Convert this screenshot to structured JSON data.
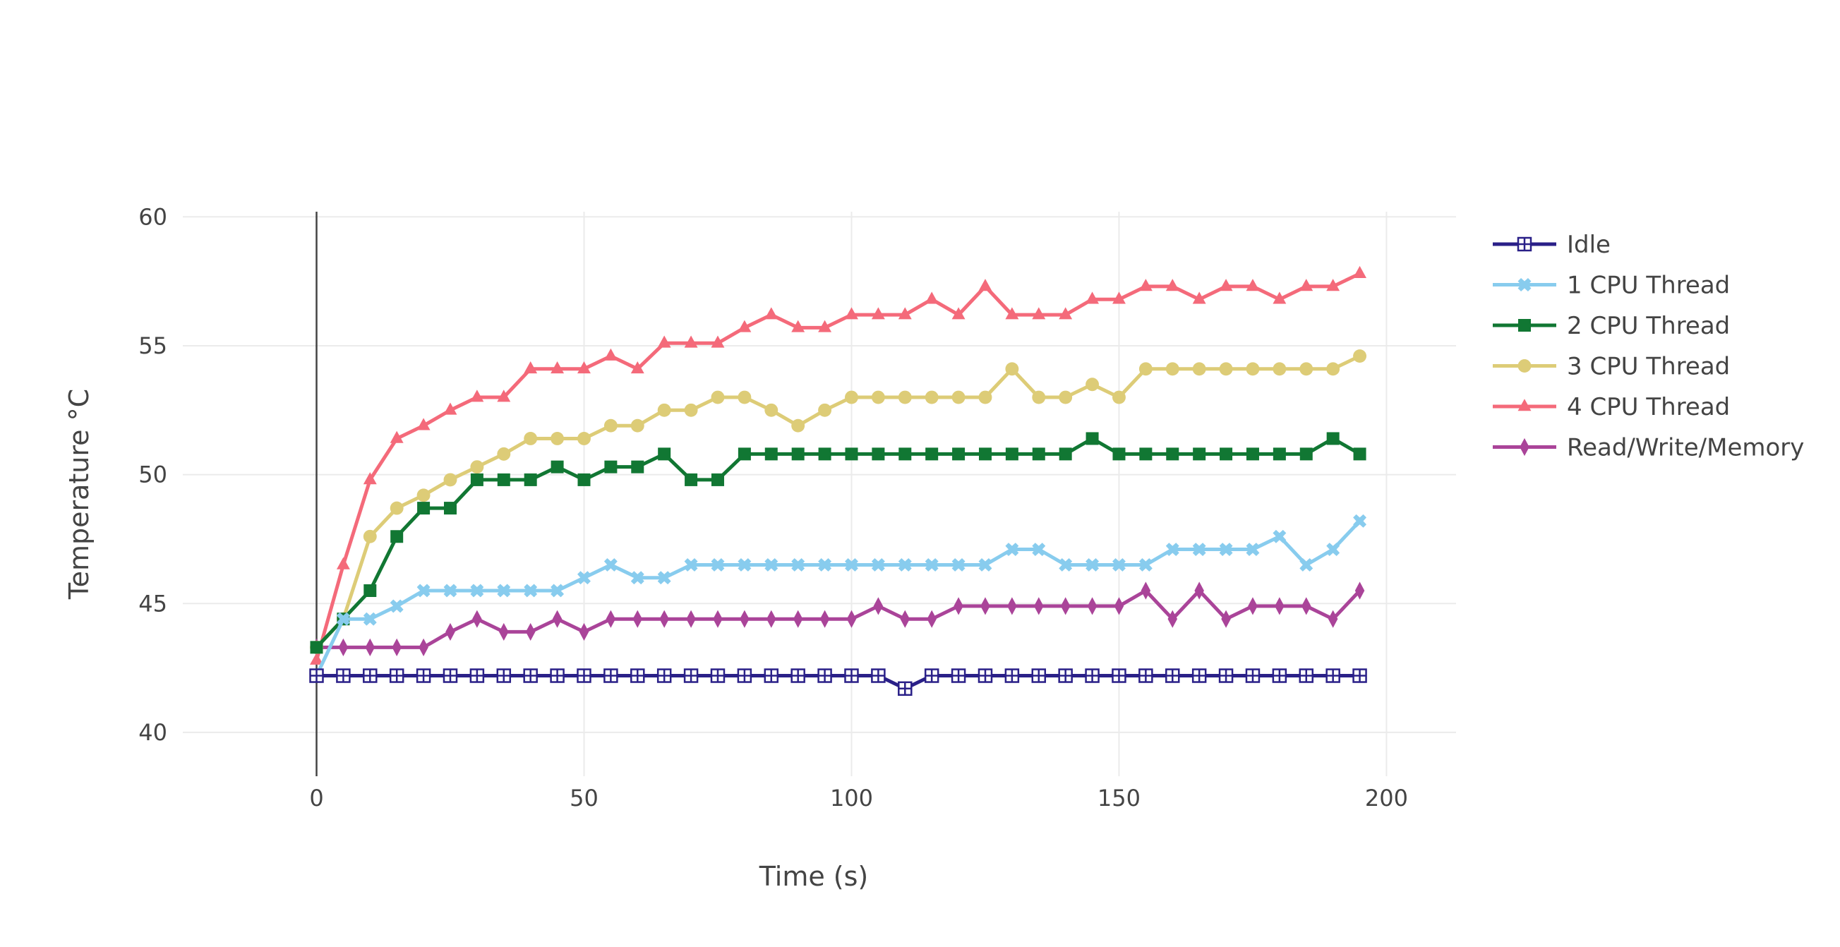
{
  "chart_data": {
    "type": "line",
    "title": "",
    "xlabel": "Time (s)",
    "ylabel": "Temperature °C",
    "xlim": [
      -25,
      213
    ],
    "ylim": [
      38.3,
      60.2
    ],
    "xticks": [
      0,
      50,
      100,
      150,
      200
    ],
    "yticks": [
      40,
      45,
      50,
      55,
      60
    ],
    "grid": true,
    "legend_position": "right",
    "x": [
      0,
      5,
      10,
      15,
      20,
      25,
      30,
      35,
      40,
      45,
      50,
      55,
      60,
      65,
      70,
      75,
      80,
      85,
      90,
      95,
      100,
      105,
      110,
      115,
      120,
      125,
      130,
      135,
      140,
      145,
      150,
      155,
      160,
      165,
      170,
      175,
      180,
      185,
      190,
      195
    ],
    "series": [
      {
        "name": "Idle",
        "color": "#2a2088",
        "marker": "square-cross",
        "values": [
          42.2,
          42.2,
          42.2,
          42.2,
          42.2,
          42.2,
          42.2,
          42.2,
          42.2,
          42.2,
          42.2,
          42.2,
          42.2,
          42.2,
          42.2,
          42.2,
          42.2,
          42.2,
          42.2,
          42.2,
          42.2,
          42.2,
          41.7,
          42.2,
          42.2,
          42.2,
          42.2,
          42.2,
          42.2,
          42.2,
          42.2,
          42.2,
          42.2,
          42.2,
          42.2,
          42.2,
          42.2,
          42.2,
          42.2,
          42.2
        ]
      },
      {
        "name": "1 CPU Thread",
        "color": "#88ccee",
        "marker": "x",
        "values": [
          42.2,
          44.4,
          44.4,
          44.9,
          45.5,
          45.5,
          45.5,
          45.5,
          45.5,
          45.5,
          46.0,
          46.5,
          46.0,
          46.0,
          46.5,
          46.5,
          46.5,
          46.5,
          46.5,
          46.5,
          46.5,
          46.5,
          46.5,
          46.5,
          46.5,
          46.5,
          47.1,
          47.1,
          46.5,
          46.5,
          46.5,
          46.5,
          47.1,
          47.1,
          47.1,
          47.1,
          47.6,
          46.5,
          47.1,
          48.2
        ]
      },
      {
        "name": "2 CPU Thread",
        "color": "#117733",
        "marker": "square",
        "values": [
          43.3,
          44.4,
          45.5,
          47.6,
          48.7,
          48.7,
          49.8,
          49.8,
          49.8,
          50.3,
          49.8,
          50.3,
          50.3,
          50.8,
          49.8,
          49.8,
          50.8,
          50.8,
          50.8,
          50.8,
          50.8,
          50.8,
          50.8,
          50.8,
          50.8,
          50.8,
          50.8,
          50.8,
          50.8,
          51.4,
          50.8,
          50.8,
          50.8,
          50.8,
          50.8,
          50.8,
          50.8,
          50.8,
          51.4,
          50.8
        ]
      },
      {
        "name": "3 CPU Thread",
        "color": "#ddcc77",
        "marker": "circle",
        "values": [
          43.3,
          44.4,
          47.6,
          48.7,
          49.2,
          49.8,
          50.3,
          50.8,
          51.4,
          51.4,
          51.4,
          51.9,
          51.9,
          52.5,
          52.5,
          53.0,
          53.0,
          52.5,
          51.9,
          52.5,
          53.0,
          53.0,
          53.0,
          53.0,
          53.0,
          53.0,
          54.1,
          53.0,
          53.0,
          53.5,
          53.0,
          54.1,
          54.1,
          54.1,
          54.1,
          54.1,
          54.1,
          54.1,
          54.1,
          54.6
        ]
      },
      {
        "name": "4 CPU Thread",
        "color": "#f46a7a",
        "marker": "triangle-up",
        "values": [
          42.8,
          46.5,
          49.8,
          51.4,
          51.9,
          52.5,
          53.0,
          53.0,
          54.1,
          54.1,
          54.1,
          54.6,
          54.1,
          55.1,
          55.1,
          55.1,
          55.7,
          56.2,
          55.7,
          55.7,
          56.2,
          56.2,
          56.2,
          56.8,
          56.2,
          57.3,
          56.2,
          56.2,
          56.2,
          56.8,
          56.8,
          57.3,
          57.3,
          56.8,
          57.3,
          57.3,
          56.8,
          57.3,
          57.3,
          57.8
        ]
      },
      {
        "name": "Read/Write/Memory",
        "color": "#aa4499",
        "marker": "diamond-tall",
        "values": [
          43.3,
          43.3,
          43.3,
          43.3,
          43.3,
          43.9,
          44.4,
          43.9,
          43.9,
          44.4,
          43.9,
          44.4,
          44.4,
          44.4,
          44.4,
          44.4,
          44.4,
          44.4,
          44.4,
          44.4,
          44.4,
          44.9,
          44.4,
          44.4,
          44.9,
          44.9,
          44.9,
          44.9,
          44.9,
          44.9,
          44.9,
          45.5,
          44.4,
          45.5,
          44.4,
          44.9,
          44.9,
          44.9,
          44.4,
          45.5
        ]
      }
    ]
  }
}
